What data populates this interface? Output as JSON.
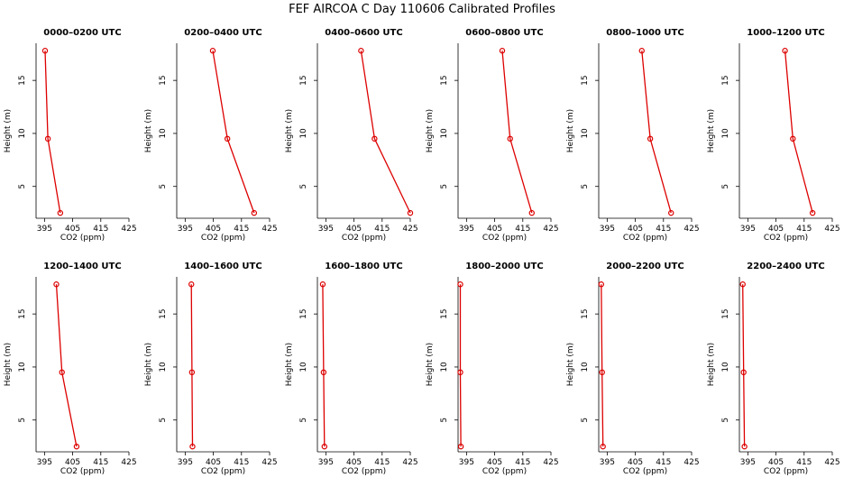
{
  "title": "FEF  AIRCOA C  Day 110606  Calibrated Profiles",
  "colors": {
    "series": "#dd0000",
    "axis": "#000000",
    "background": "#ffffff"
  },
  "chart_data": {
    "type": "line",
    "xlabel": "CO2 (ppm)",
    "ylabel": "Height (m)",
    "xlim": [
      392,
      425
    ],
    "ylim": [
      2,
      18.5
    ],
    "xticks": [
      395,
      405,
      415,
      425
    ],
    "yticks": [
      5,
      10,
      15
    ],
    "grid": false,
    "panels": [
      {
        "title": "0000–0200 UTC",
        "points": [
          {
            "x": 395.2,
            "y": 17.8
          },
          {
            "x": 396.2,
            "y": 9.5
          },
          {
            "x": 400.6,
            "y": 2.5
          }
        ]
      },
      {
        "title": "0200–0400 UTC",
        "points": [
          {
            "x": 404.8,
            "y": 17.8
          },
          {
            "x": 410.0,
            "y": 9.5
          },
          {
            "x": 419.5,
            "y": 2.5
          }
        ]
      },
      {
        "title": "0400–0600 UTC",
        "points": [
          {
            "x": 407.5,
            "y": 17.8
          },
          {
            "x": 412.3,
            "y": 9.5
          },
          {
            "x": 425.0,
            "y": 2.5
          }
        ]
      },
      {
        "title": "0600–0800 UTC",
        "points": [
          {
            "x": 407.7,
            "y": 17.8
          },
          {
            "x": 410.5,
            "y": 9.5
          },
          {
            "x": 418.2,
            "y": 2.5
          }
        ]
      },
      {
        "title": "0800–1000 UTC",
        "points": [
          {
            "x": 407.3,
            "y": 17.8
          },
          {
            "x": 410.3,
            "y": 9.5
          },
          {
            "x": 417.7,
            "y": 2.5
          }
        ]
      },
      {
        "title": "1000–1200 UTC",
        "points": [
          {
            "x": 408.2,
            "y": 17.8
          },
          {
            "x": 411.0,
            "y": 9.5
          },
          {
            "x": 418.0,
            "y": 2.5
          }
        ]
      },
      {
        "title": "1200–1400 UTC",
        "points": [
          {
            "x": 399.2,
            "y": 17.8
          },
          {
            "x": 401.2,
            "y": 9.5
          },
          {
            "x": 406.4,
            "y": 2.5
          }
        ]
      },
      {
        "title": "1400–1600 UTC",
        "points": [
          {
            "x": 397.2,
            "y": 17.8
          },
          {
            "x": 397.4,
            "y": 9.5
          },
          {
            "x": 397.6,
            "y": 2.5
          }
        ]
      },
      {
        "title": "1600–1800 UTC",
        "points": [
          {
            "x": 393.9,
            "y": 17.8
          },
          {
            "x": 394.2,
            "y": 9.5
          },
          {
            "x": 394.5,
            "y": 2.5
          }
        ]
      },
      {
        "title": "1800–2000 UTC",
        "points": [
          {
            "x": 392.8,
            "y": 17.8
          },
          {
            "x": 392.8,
            "y": 9.5
          },
          {
            "x": 393.0,
            "y": 2.5
          }
        ]
      },
      {
        "title": "2000–2200 UTC",
        "points": [
          {
            "x": 392.9,
            "y": 17.8
          },
          {
            "x": 393.2,
            "y": 9.5
          },
          {
            "x": 393.5,
            "y": 2.5
          }
        ]
      },
      {
        "title": "2200–2400 UTC",
        "points": [
          {
            "x": 393.2,
            "y": 17.8
          },
          {
            "x": 393.5,
            "y": 9.5
          },
          {
            "x": 393.8,
            "y": 2.5
          }
        ]
      }
    ]
  }
}
